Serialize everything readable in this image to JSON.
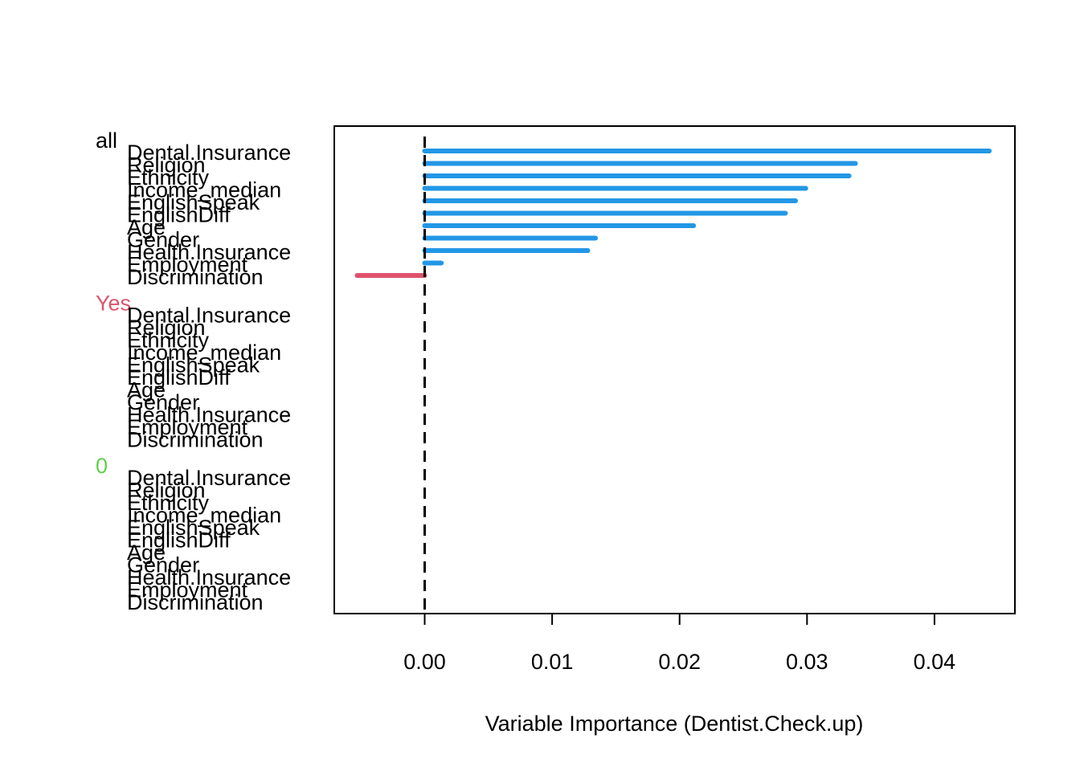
{
  "chart_data": {
    "type": "bar",
    "orientation": "horizontal",
    "xlabel": "Variable Importance (Dentist.Check.up)",
    "xlim": [
      -0.007,
      0.046
    ],
    "xticks": [
      "0.00",
      "0.01",
      "0.02",
      "0.03",
      "0.04"
    ],
    "reference_line": {
      "x": 0,
      "style": "dashed"
    },
    "variables": [
      "Dental.Insurance",
      "Religion",
      "Ethnicity",
      "Income_median",
      "EnglishSpeak",
      "EnglishDiff",
      "Age",
      "Gender",
      "Health.Insurance",
      "Employment",
      "Discrimination"
    ],
    "groups": [
      {
        "name": "all",
        "color": "#000000",
        "values": [
          0.0443,
          0.0338,
          0.0333,
          0.0299,
          0.0291,
          0.0283,
          0.0211,
          0.0134,
          0.0128,
          0.0013,
          -0.0053
        ]
      },
      {
        "name": "Yes",
        "color": "#DF536B",
        "values": [
          0,
          0,
          0,
          0,
          0,
          0,
          0,
          0,
          0,
          0,
          0
        ]
      },
      {
        "name": "0",
        "color": "#61D04F",
        "values": [
          0,
          0,
          0,
          0,
          0,
          0,
          0,
          0,
          0,
          0,
          0
        ]
      }
    ],
    "positive_color": "#2297E6",
    "negative_color": "#DF536B"
  }
}
